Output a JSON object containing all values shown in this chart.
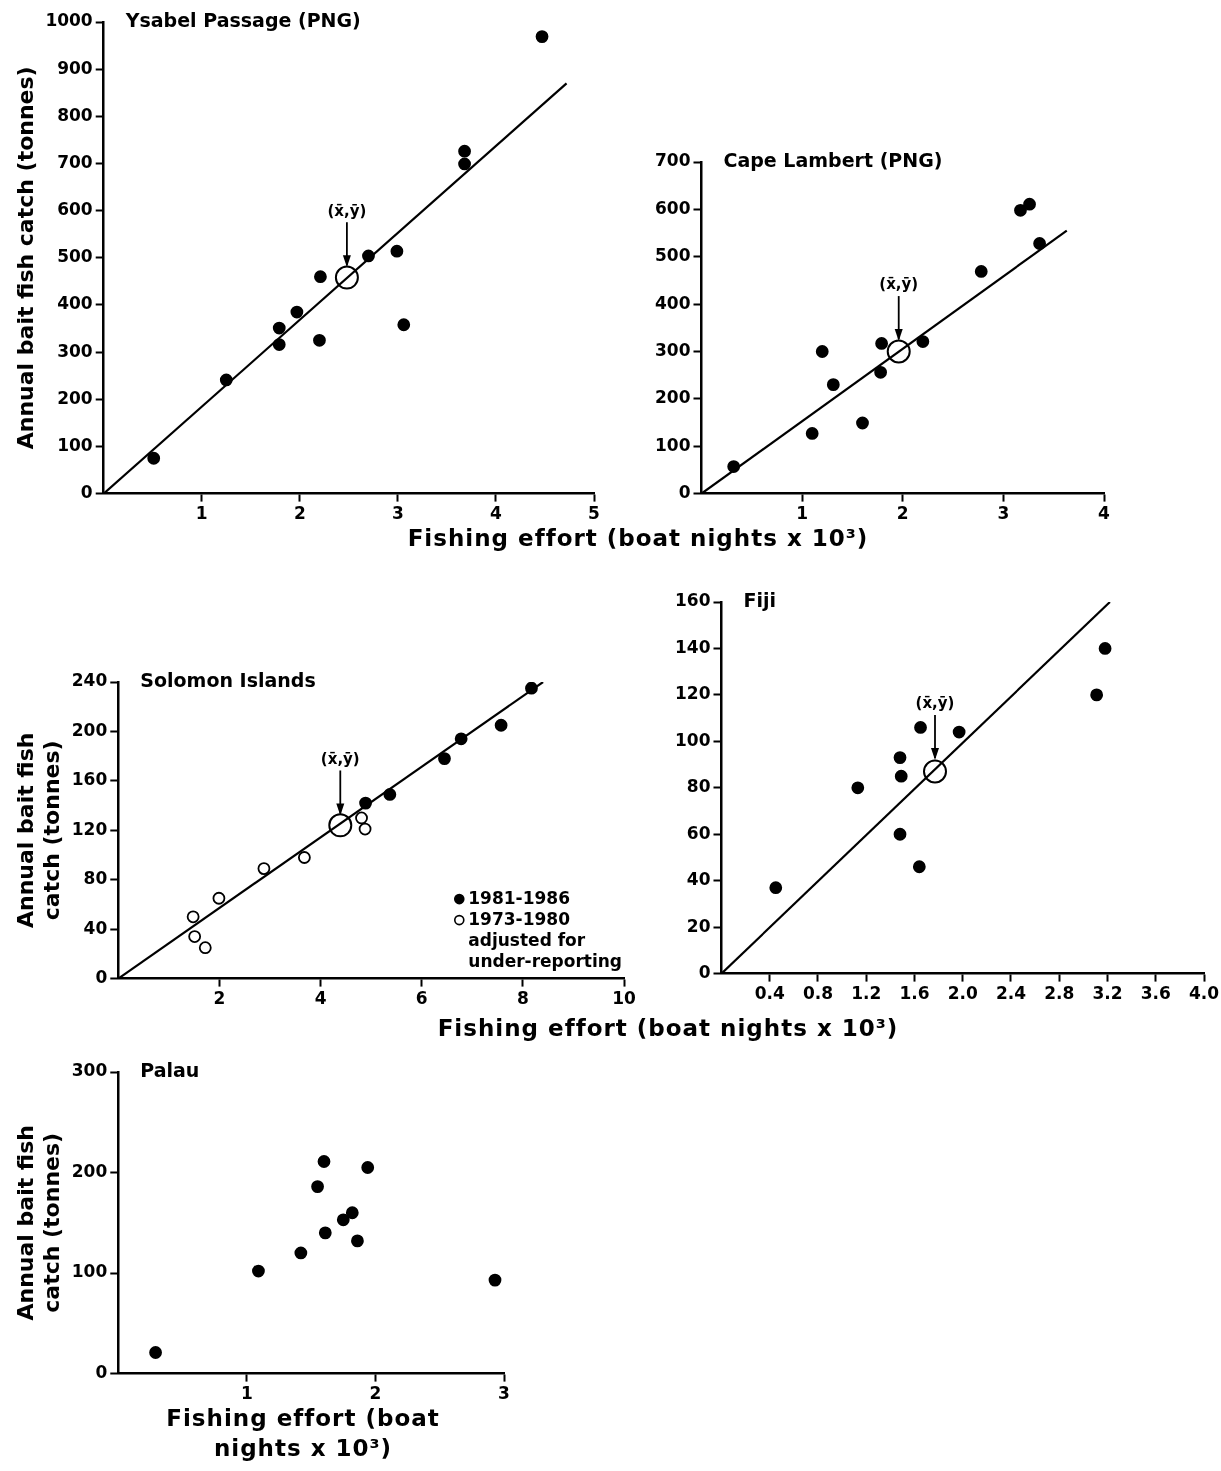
{
  "chart_data": [
    {
      "type": "scatter",
      "title": "Ysabel Passage (PNG)",
      "xlabel": "Fishing effort (boat nights x 10³)",
      "ylabel": "Annual bait fish catch (tonnes)",
      "xlim": [
        0,
        5
      ],
      "xticks": [
        1,
        2,
        3,
        4,
        5
      ],
      "ylim": [
        0,
        1000
      ],
      "yticks": [
        0,
        100,
        200,
        300,
        400,
        500,
        600,
        700,
        800,
        900,
        1000
      ],
      "grid": false,
      "legend": false,
      "annotations": [
        {
          "text": "(x̄,ȳ)",
          "x": 2.48,
          "y": 480
        }
      ],
      "series": [
        {
          "color": "#000000",
          "marker": "circle",
          "x": [
            0.51,
            1.25,
            1.79,
            1.79,
            1.97,
            2.21,
            2.2,
            2.7,
            2.99,
            3.06,
            3.68,
            3.68,
            4.47
          ],
          "values": [
            75,
            241,
            351,
            316,
            385,
            460,
            325,
            504,
            514,
            358,
            726,
            699,
            969
          ]
        },
        {
          "type": "line",
          "color": "#000000",
          "marker": "none",
          "x": [
            0,
            4.72
          ],
          "values": [
            0,
            870
          ]
        },
        {
          "type": "bubble",
          "color": "#000000",
          "x": [
            2.48
          ],
          "values": [
            458
          ],
          "sizes": [
            1
          ]
        }
      ]
    },
    {
      "type": "scatter",
      "title": "Cape Lambert (PNG)",
      "xlim": [
        0,
        4
      ],
      "xticks": [
        1,
        2,
        3,
        4
      ],
      "ylim": [
        0,
        700
      ],
      "yticks": [
        0,
        100,
        200,
        300,
        400,
        500,
        600,
        700
      ],
      "grid": false,
      "legend": false,
      "annotations": [
        {
          "text": "(x̄,ȳ)",
          "x": 1.96,
          "y": 322
        }
      ],
      "series": [
        {
          "color": "#000000",
          "marker": "circle",
          "x": [
            0.32,
            1.1,
            1.2,
            1.31,
            1.6,
            1.79,
            1.78,
            2.2,
            2.78,
            3.17,
            3.26,
            3.36
          ],
          "values": [
            57,
            127,
            300,
            230,
            149,
            317,
            256,
            321,
            469,
            598,
            611,
            528
          ]
        },
        {
          "type": "line",
          "color": "#000000",
          "marker": "none",
          "x": [
            0,
            3.63
          ],
          "values": [
            0,
            555
          ]
        },
        {
          "type": "bubble",
          "color": "#000000",
          "x": [
            1.96
          ],
          "values": [
            300
          ],
          "sizes": [
            1
          ]
        }
      ]
    },
    {
      "type": "scatter",
      "title": "Solomon Islands",
      "xlabel": "Fishing effort (boat nights x 10³)",
      "ylabel": "Annual bait fish catch (tonnes)",
      "xlim": [
        0,
        10
      ],
      "xticks": [
        2,
        4,
        6,
        8,
        10
      ],
      "ylim": [
        0,
        240
      ],
      "yticks": [
        0,
        40,
        80,
        120,
        160,
        200,
        240
      ],
      "grid": false,
      "legend": "bottom right",
      "annotations": [
        {
          "text": "(x̄,ȳ)",
          "x": 4.39,
          "y": 132
        }
      ],
      "series": [
        {
          "name": "1981-1986",
          "color": "#000000",
          "marker": "circle",
          "x": [
            4.89,
            5.37,
            6.45,
            6.78,
            7.57,
            8.17
          ],
          "values": [
            142,
            149,
            178,
            194,
            205,
            235
          ]
        },
        {
          "name": "1973-1980 adjusted for under-reporting",
          "color": "#ffffff",
          "marker": "circle",
          "x": [
            1.48,
            1.51,
            1.72,
            1.99,
            2.88,
            3.68,
            4.81,
            4.88
          ],
          "values": [
            50,
            34,
            25,
            65,
            89,
            98,
            130,
            121
          ]
        },
        {
          "type": "line",
          "color": "#000000",
          "marker": "none",
          "x": [
            0,
            8.4
          ],
          "values": [
            0,
            240
          ]
        },
        {
          "type": "bubble",
          "color": "#000000",
          "x": [
            4.39
          ],
          "values": [
            124
          ],
          "sizes": [
            1
          ]
        }
      ]
    },
    {
      "type": "scatter",
      "title": "Fiji",
      "xlim": [
        0,
        4
      ],
      "xticks": [
        0.4,
        0.8,
        1.2,
        1.6,
        {
          "value": 2,
          "label": "2.0"
        },
        2.4,
        2.8,
        3.2,
        3.6,
        {
          "value": 4,
          "label": "4.0"
        }
      ],
      "ylim": [
        0,
        160
      ],
      "yticks": [
        0,
        20,
        40,
        60,
        80,
        100,
        120,
        140,
        160
      ],
      "grid": false,
      "legend": false,
      "annotations": [
        {
          "text": "(x̄,ȳ)",
          "x": 1.77,
          "y": 92
        }
      ],
      "series": [
        {
          "color": "#000000",
          "marker": "circle",
          "x": [
            0.45,
            1.13,
            1.48,
            1.49,
            1.48,
            1.65,
            1.64,
            1.97,
            3.11,
            3.18
          ],
          "values": [
            37,
            80,
            93,
            85,
            60,
            106,
            46,
            104,
            120,
            140
          ]
        },
        {
          "type": "line",
          "color": "#000000",
          "marker": "none",
          "x": [
            0,
            3.22
          ],
          "values": [
            0,
            160
          ]
        },
        {
          "type": "bubble",
          "color": "#000000",
          "x": [
            1.77
          ],
          "values": [
            87
          ],
          "sizes": [
            1
          ]
        }
      ]
    },
    {
      "type": "scatter",
      "title": "Palau",
      "xlabel": "Fishing effort (boat nights x 10³)",
      "ylabel": "Annual bait fish catch (tonnes)",
      "xlim": [
        0,
        3
      ],
      "xticks": [
        1,
        2,
        3
      ],
      "ylim": [
        0,
        300
      ],
      "yticks": [
        0,
        100,
        200,
        300
      ],
      "grid": false,
      "legend": false,
      "series": [
        {
          "color": "#000000",
          "marker": "circle",
          "x": [
            0.29,
            1.09,
            1.42,
            1.55,
            1.6,
            1.61,
            1.75,
            1.82,
            1.86,
            1.94,
            2.93
          ],
          "values": [
            21,
            102,
            120,
            186,
            211,
            140,
            153,
            160,
            132,
            205,
            93
          ]
        }
      ]
    }
  ]
}
